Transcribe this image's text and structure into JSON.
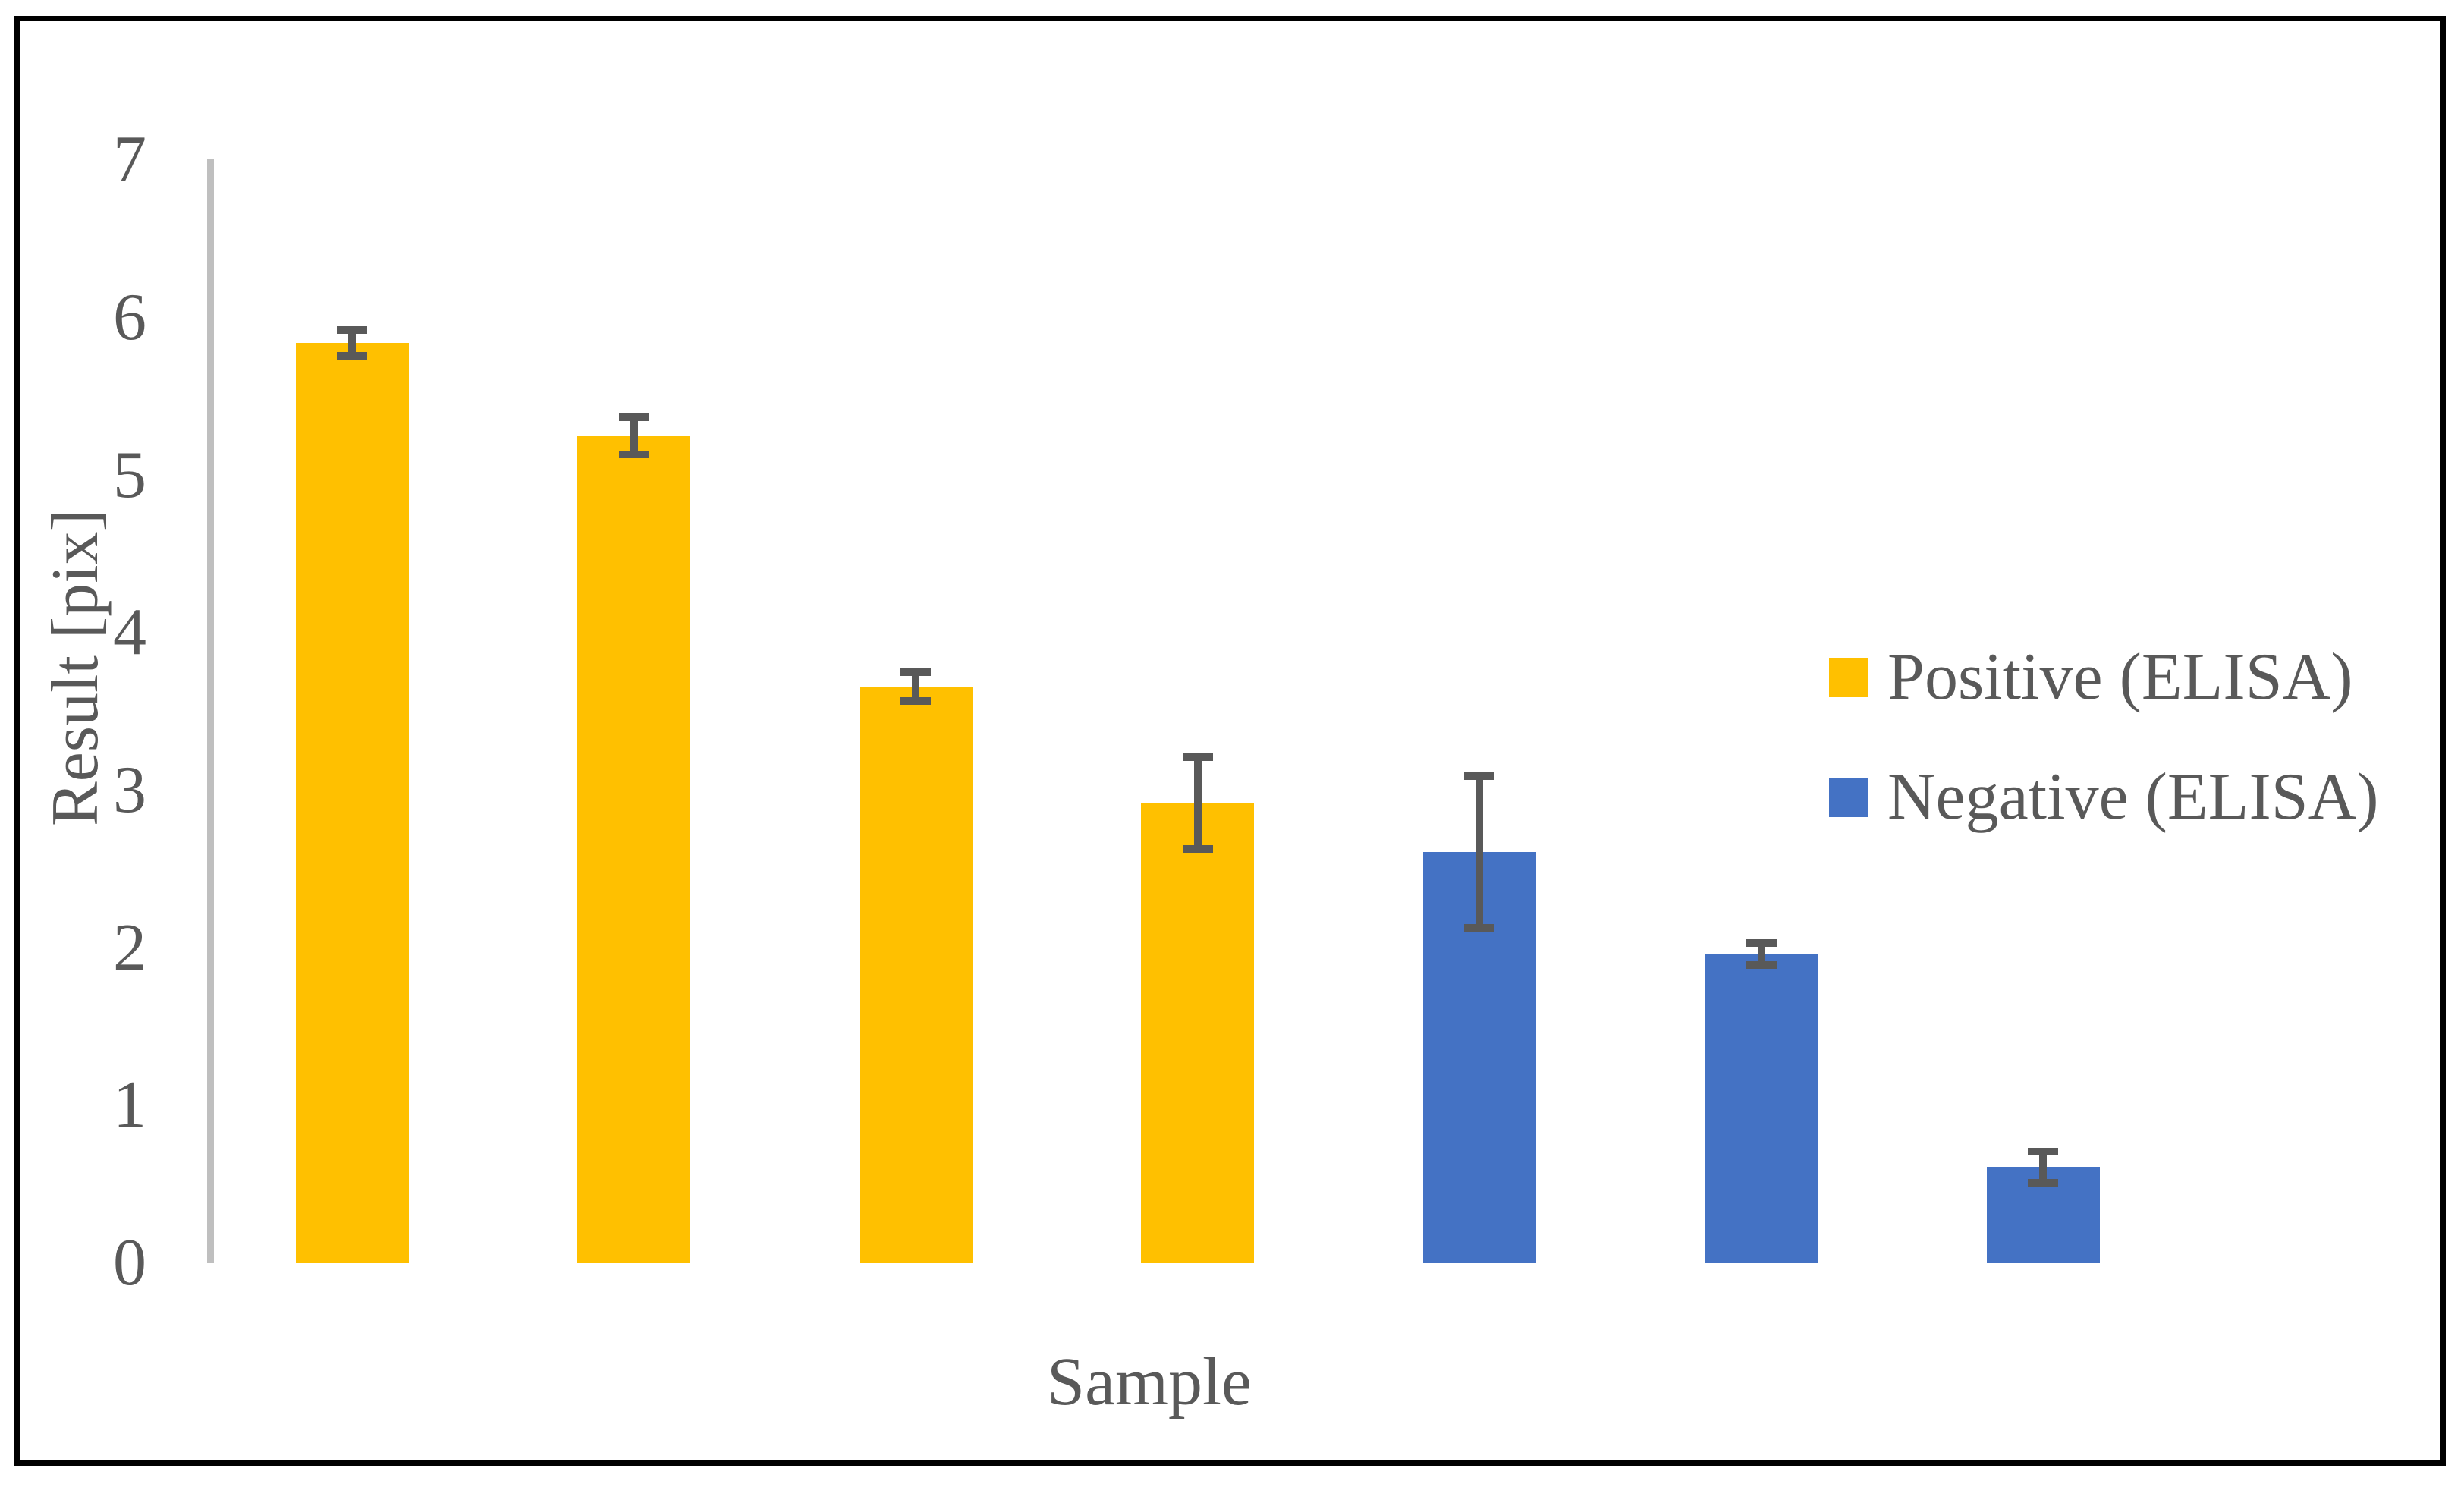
{
  "figure": {
    "background": "#FFFFFF",
    "border_color": "#000000"
  },
  "chart_data": {
    "type": "bar",
    "title": "",
    "xlabel": "Sample",
    "ylabel": "Result [pix]",
    "ylim": [
      0,
      7
    ],
    "yticks": [
      0,
      1,
      2,
      3,
      4,
      5,
      6,
      7
    ],
    "grid": false,
    "legend_position": "right-middle",
    "bar_width_fraction": 0.4,
    "axis_line_color": "#BFBFBF",
    "error_bar_color": "#595959",
    "text_color": "#595959",
    "series": [
      {
        "name": "Positive (ELISA)",
        "color": "#FFC000",
        "values": [
          5.84,
          5.25,
          3.66,
          2.92
        ],
        "errors": [
          0.08,
          0.12,
          0.09,
          0.29
        ]
      },
      {
        "name": "Negative (ELISA)",
        "color": "#4472C4",
        "values": [
          2.61,
          1.96,
          0.61
        ],
        "errors": [
          0.48,
          0.07,
          0.1
        ]
      }
    ]
  }
}
